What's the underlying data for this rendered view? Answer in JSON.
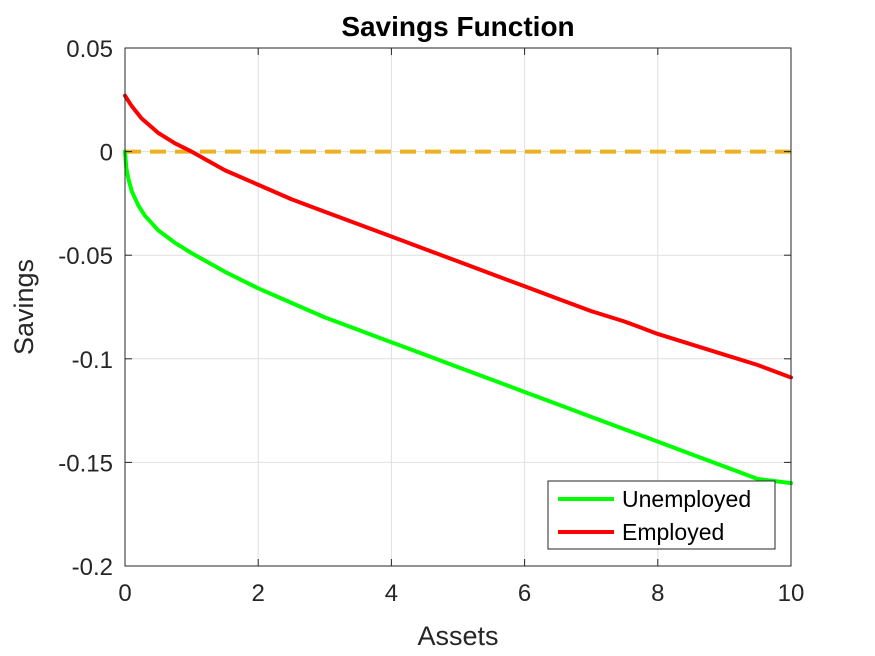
{
  "chart_data": {
    "type": "line",
    "title": "Savings Function",
    "xlabel": "Assets",
    "ylabel": "Savings",
    "xlim": [
      0,
      10
    ],
    "ylim": [
      -0.2,
      0.05
    ],
    "xticks": [
      0,
      2,
      4,
      6,
      8,
      10
    ],
    "xtick_labels": [
      "0",
      "2",
      "4",
      "6",
      "8",
      "10"
    ],
    "yticks": [
      0.05,
      0,
      -0.05,
      -0.1,
      -0.15,
      -0.2
    ],
    "ytick_labels": [
      "0.05",
      "0",
      "-0.05",
      "-0.1",
      "-0.15",
      "-0.2"
    ],
    "grid": true,
    "legend_position": "bottom-right",
    "series": [
      {
        "name": "Unemployed",
        "color": "#00ff00",
        "in_legend": true,
        "x": [
          0,
          0.02,
          0.05,
          0.1,
          0.2,
          0.3,
          0.5,
          0.75,
          1,
          1.5,
          2,
          2.5,
          3,
          3.5,
          4,
          4.5,
          5,
          5.5,
          6,
          6.5,
          7,
          7.5,
          8,
          8.5,
          9,
          9.5,
          10
        ],
        "y": [
          0,
          -0.008,
          -0.013,
          -0.019,
          -0.026,
          -0.031,
          -0.038,
          -0.044,
          -0.049,
          -0.058,
          -0.066,
          -0.073,
          -0.08,
          -0.086,
          -0.092,
          -0.098,
          -0.104,
          -0.11,
          -0.116,
          -0.122,
          -0.128,
          -0.134,
          -0.14,
          -0.146,
          -0.152,
          -0.158,
          -0.16
        ]
      },
      {
        "name": "Employed",
        "color": "#ff0000",
        "in_legend": true,
        "x": [
          0,
          0.1,
          0.25,
          0.5,
          0.75,
          1,
          1.5,
          2,
          2.5,
          3,
          3.5,
          4,
          4.5,
          5,
          5.5,
          6,
          6.5,
          7,
          7.5,
          8,
          8.5,
          9,
          9.5,
          10
        ],
        "y": [
          0.027,
          0.022,
          0.016,
          0.009,
          0.004,
          0,
          -0.009,
          -0.016,
          -0.023,
          -0.029,
          -0.035,
          -0.041,
          -0.047,
          -0.053,
          -0.059,
          -0.065,
          -0.071,
          -0.077,
          -0.082,
          -0.088,
          -0.093,
          -0.098,
          -0.103,
          -0.109
        ]
      },
      {
        "name": "Zero line",
        "color": "#edb120",
        "dashed": true,
        "in_legend": false,
        "x": [
          0,
          10
        ],
        "y": [
          0,
          0
        ]
      }
    ]
  }
}
